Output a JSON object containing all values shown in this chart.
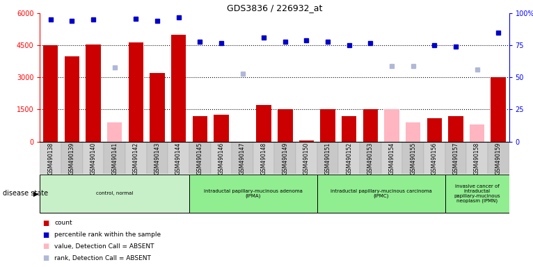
{
  "title": "GDS3836 / 226932_at",
  "samples": [
    "GSM490138",
    "GSM490139",
    "GSM490140",
    "GSM490141",
    "GSM490142",
    "GSM490143",
    "GSM490144",
    "GSM490145",
    "GSM490146",
    "GSM490147",
    "GSM490148",
    "GSM490149",
    "GSM490150",
    "GSM490151",
    "GSM490152",
    "GSM490153",
    "GSM490154",
    "GSM490155",
    "GSM490156",
    "GSM490157",
    "GSM490158",
    "GSM490159"
  ],
  "count": [
    4500,
    4000,
    4550,
    null,
    4650,
    3200,
    5000,
    1200,
    1250,
    null,
    1700,
    1500,
    50,
    1500,
    1200,
    1500,
    null,
    null,
    1100,
    1200,
    null,
    3000
  ],
  "count_absent": [
    null,
    null,
    null,
    900,
    null,
    null,
    null,
    null,
    null,
    null,
    null,
    null,
    null,
    null,
    null,
    null,
    1500,
    900,
    null,
    null,
    800,
    null
  ],
  "rank": [
    95,
    94,
    95,
    null,
    96,
    94,
    97,
    78,
    77,
    null,
    81,
    78,
    79,
    78,
    75,
    77,
    null,
    null,
    75,
    74,
    null,
    85
  ],
  "rank_absent": [
    null,
    null,
    null,
    58,
    null,
    null,
    null,
    null,
    null,
    53,
    null,
    null,
    null,
    null,
    null,
    null,
    59,
    59,
    null,
    null,
    56,
    null
  ],
  "ylim_left": [
    0,
    6000
  ],
  "yticks_left": [
    0,
    1500,
    3000,
    4500,
    6000
  ],
  "ytick_labels_left": [
    "0",
    "1500",
    "3000",
    "4500",
    "6000"
  ],
  "ylim_right": [
    0,
    100
  ],
  "yticks_right": [
    0,
    25,
    50,
    75,
    100
  ],
  "ytick_labels_right": [
    "0",
    "25",
    "50",
    "75",
    "100%"
  ],
  "groups": [
    {
      "label": "control, normal",
      "start": 0,
      "end": 7,
      "color": "#c8f0c8"
    },
    {
      "label": "intraductal papillary-mucinous adenoma\n(IPMA)",
      "start": 7,
      "end": 13,
      "color": "#90ee90"
    },
    {
      "label": "intraductal papillary-mucinous carcinoma\n(IPMC)",
      "start": 13,
      "end": 19,
      "color": "#90ee90"
    },
    {
      "label": "invasive cancer of\nintraductal\npapillary-mucinous\nneoplasm (IPMN)",
      "start": 19,
      "end": 22,
      "color": "#90ee90"
    }
  ],
  "bar_color": "#cc0000",
  "bar_absent_color": "#ffb6c1",
  "rank_color": "#0000cc",
  "rank_absent_color": "#b0b8d8",
  "disease_state_label": "disease state",
  "legend_labels": [
    "count",
    "percentile rank within the sample",
    "value, Detection Call = ABSENT",
    "rank, Detection Call = ABSENT"
  ],
  "legend_colors": [
    "#cc0000",
    "#0000cc",
    "#ffb6c1",
    "#b0b8d8"
  ]
}
